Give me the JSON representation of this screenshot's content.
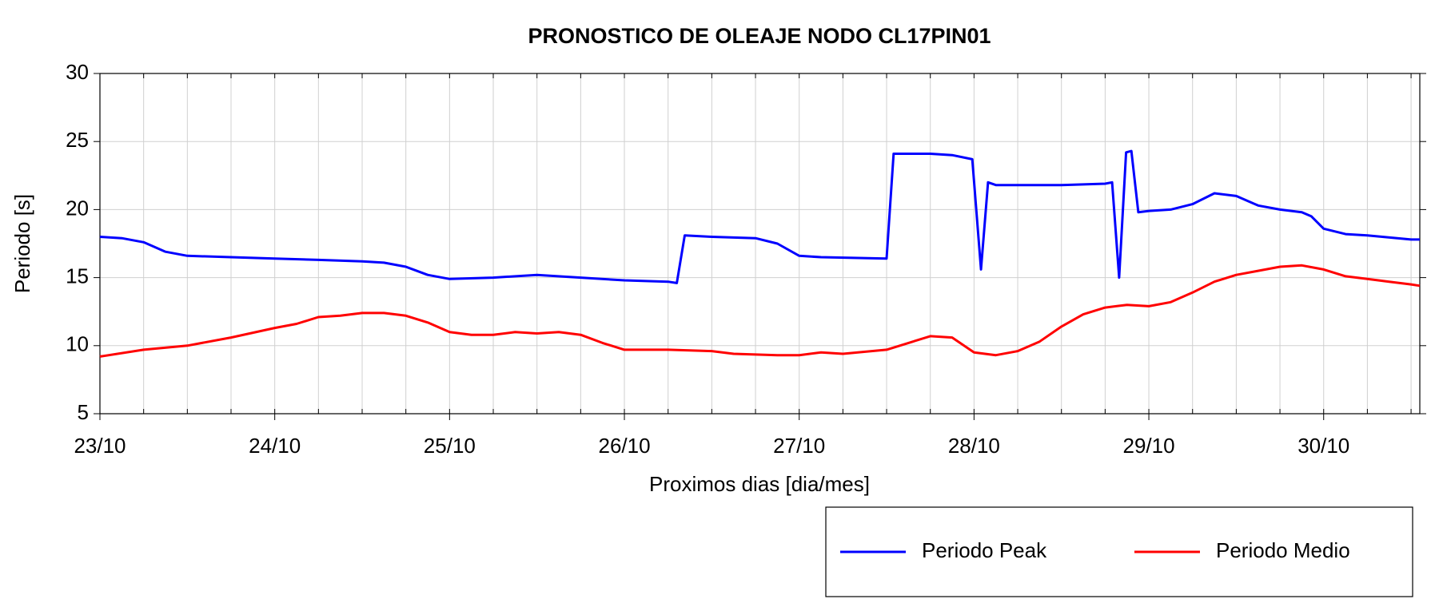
{
  "chart_data": {
    "type": "line",
    "title": "PRONOSTICO DE OLEAJE NODO CL17PIN01",
    "x_label": "Proximos dias [dia/mes]",
    "y_label": "Periodo [s]",
    "xlim": [
      23,
      30.55
    ],
    "xticks": [
      {
        "value": 23,
        "label": "23/10"
      },
      {
        "value": 24,
        "label": "24/10"
      },
      {
        "value": 25,
        "label": "25/10"
      },
      {
        "value": 26,
        "label": "26/10"
      },
      {
        "value": 27,
        "label": "27/10"
      },
      {
        "value": 28,
        "label": "28/10"
      },
      {
        "value": 29,
        "label": "29/10"
      },
      {
        "value": 30,
        "label": "30/10"
      }
    ],
    "minor_xtick_step": 0.25,
    "ylim": [
      5,
      30
    ],
    "yticks": [
      5,
      10,
      15,
      20,
      25,
      30
    ],
    "grid": true,
    "legend": "bottom-right",
    "series": [
      {
        "name": "Periodo Peak",
        "color": "#0000ff",
        "x": [
          23,
          23.125,
          23.25,
          23.375,
          23.5,
          23.75,
          24,
          24.25,
          24.5,
          24.625,
          24.75,
          24.875,
          25,
          25.25,
          25.5,
          25.75,
          26,
          26.25,
          26.3,
          26.345,
          26.5,
          26.75,
          26.875,
          27,
          27.125,
          27.5,
          27.54,
          27.75,
          27.875,
          27.99,
          28.04,
          28.08,
          28.125,
          28.5,
          28.75,
          28.79,
          28.83,
          28.87,
          28.9,
          28.94,
          29,
          29.125,
          29.25,
          29.375,
          29.5,
          29.625,
          29.75,
          29.875,
          29.93,
          30,
          30.125,
          30.25,
          30.5,
          30.55
        ],
        "values": [
          18.0,
          17.9,
          17.6,
          16.9,
          16.6,
          16.5,
          16.4,
          16.3,
          16.2,
          16.1,
          15.8,
          15.2,
          14.9,
          15.0,
          15.2,
          15.0,
          14.8,
          14.7,
          14.6,
          18.1,
          18.0,
          17.9,
          17.5,
          16.6,
          16.5,
          16.4,
          24.1,
          24.1,
          24.0,
          23.7,
          15.6,
          22.0,
          21.8,
          21.8,
          21.9,
          22.0,
          15.0,
          24.2,
          24.3,
          19.8,
          19.9,
          20.0,
          20.4,
          21.2,
          21.0,
          20.3,
          20.0,
          19.8,
          19.5,
          18.6,
          18.2,
          18.1,
          17.8,
          17.8
        ]
      },
      {
        "name": "Periodo Medio",
        "color": "#ff0000",
        "x": [
          23,
          23.25,
          23.5,
          23.75,
          24,
          24.125,
          24.25,
          24.375,
          24.5,
          24.625,
          24.75,
          24.875,
          25,
          25.125,
          25.25,
          25.375,
          25.5,
          25.625,
          25.75,
          25.875,
          26,
          26.25,
          26.5,
          26.625,
          26.875,
          27,
          27.125,
          27.25,
          27.5,
          27.625,
          27.75,
          27.875,
          28,
          28.125,
          28.25,
          28.375,
          28.5,
          28.625,
          28.75,
          28.875,
          29,
          29.125,
          29.25,
          29.375,
          29.5,
          29.625,
          29.75,
          29.875,
          30,
          30.125,
          30.25,
          30.375,
          30.5,
          30.55
        ],
        "values": [
          9.2,
          9.7,
          10.0,
          10.6,
          11.3,
          11.6,
          12.1,
          12.2,
          12.4,
          12.4,
          12.2,
          11.7,
          11.0,
          10.8,
          10.8,
          11.0,
          10.9,
          11.0,
          10.8,
          10.2,
          9.7,
          9.7,
          9.6,
          9.4,
          9.3,
          9.3,
          9.5,
          9.4,
          9.7,
          10.2,
          10.7,
          10.6,
          9.5,
          9.3,
          9.6,
          10.3,
          11.4,
          12.3,
          12.8,
          13.0,
          12.9,
          13.2,
          13.9,
          14.7,
          15.2,
          15.5,
          15.8,
          15.9,
          15.6,
          15.1,
          14.9,
          14.7,
          14.5,
          14.4
        ]
      }
    ]
  }
}
